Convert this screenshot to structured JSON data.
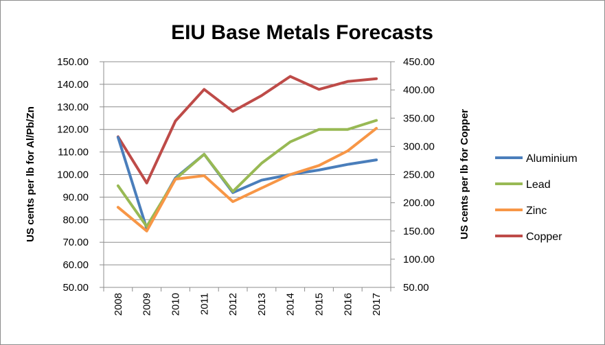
{
  "chart_data": {
    "type": "line",
    "title": "EIU Base Metals Forecasts",
    "ylabel": "US cents per lb for Al/Pb/Zn",
    "y2label": "US cents per lb for Copper",
    "x": [
      "2008",
      "2009",
      "2010",
      "2011",
      "2012",
      "2013",
      "2014",
      "2015",
      "2016",
      "2017"
    ],
    "ylim": [
      50,
      150
    ],
    "y2lim": [
      50,
      450
    ],
    "yticks": [
      "50.00",
      "60.00",
      "70.00",
      "80.00",
      "90.00",
      "100.00",
      "110.00",
      "120.00",
      "130.00",
      "140.00",
      "150.00"
    ],
    "y2ticks": [
      "50.00",
      "100.00",
      "150.00",
      "200.00",
      "250.00",
      "300.00",
      "350.00",
      "400.00",
      "450.00"
    ],
    "grid": true,
    "legend": "right",
    "series": [
      {
        "name": "Aluminium",
        "axis": "left",
        "color": "#4a7ebb",
        "values": [
          116.5,
          76,
          98.5,
          109,
          92,
          97.5,
          100,
          102,
          104.5,
          106.5
        ]
      },
      {
        "name": "Lead",
        "axis": "left",
        "color": "#98b954",
        "values": [
          95,
          77,
          98,
          109,
          92.5,
          105,
          114.5,
          120,
          120,
          124
        ]
      },
      {
        "name": "Zinc",
        "axis": "left",
        "color": "#f79646",
        "values": [
          85.5,
          75,
          98,
          99.5,
          88,
          94,
          100,
          104,
          110.5,
          120.5
        ]
      },
      {
        "name": "Copper",
        "axis": "right",
        "color": "#be4b48",
        "values": [
          317,
          235,
          345,
          401,
          362,
          390,
          424,
          401,
          415,
          420
        ]
      }
    ]
  }
}
